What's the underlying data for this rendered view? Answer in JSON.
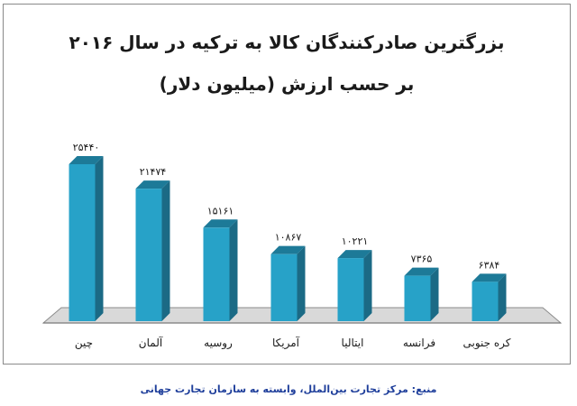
{
  "title_line1": "بزرگترین صادرکنندگان کالا به ترکیه در سال ۲۰۱۶",
  "title_line2": "بر حسب ارزش (میلیون دلار)",
  "source": "منبع: مرکز تجارت بین‌الملل، وابسته به سازمان تجارت جهانی",
  "colors": {
    "bar_front": "#27a2c8",
    "bar_side": "#1b6a85",
    "bar_top": "#1d7a98",
    "floor": "#d9d9d9",
    "floor_edge": "#8c8c8c"
  },
  "chart_data": {
    "type": "bar",
    "title": "بزرگترین صادرکنندگان کالا به ترکیه در سال ۲۰۱۶ بر حسب ارزش (میلیون دلار)",
    "categories": [
      "چین",
      "آلمان",
      "روسیه",
      "آمریکا",
      "ایتالیا",
      "فرانسه",
      "کره جنوبی"
    ],
    "values": [
      25440,
      21474,
      15161,
      10867,
      10221,
      7365,
      6384
    ],
    "value_labels": [
      "۲۵۴۴۰",
      "۲۱۴۷۴",
      "۱۵۱۶۱",
      "۱۰۸۶۷",
      "۱۰۲۲۱",
      "۷۳۶۵",
      "۶۳۸۴"
    ],
    "ylim": [
      0,
      25440
    ],
    "grid": false,
    "legend": "none",
    "three_d": true
  }
}
